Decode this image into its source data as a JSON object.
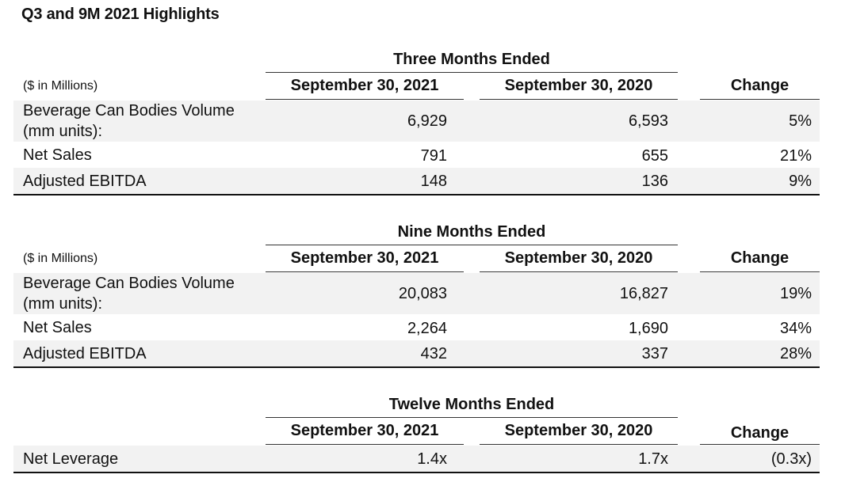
{
  "title": "Q3 and 9M 2021 Highlights",
  "sections": [
    {
      "period": "Three Months Ended",
      "units": "($ in Millions)",
      "columns": [
        "September 30, 2021",
        "September 30, 2020",
        "Change"
      ],
      "rows": [
        {
          "label_line1": "Beverage Can Bodies Volume",
          "label_line2": "(mm units):",
          "v2021": "6,929",
          "v2020": "6,593",
          "change": "5%"
        },
        {
          "label": "Net Sales",
          "v2021": "791",
          "v2020": "655",
          "change": "21%"
        },
        {
          "label": "Adjusted EBITDA",
          "v2021": "148",
          "v2020": "136",
          "change": "9%"
        }
      ]
    },
    {
      "period": "Nine Months Ended",
      "units": "($ in Millions)",
      "columns": [
        "September 30, 2021",
        "September 30, 2020",
        "Change"
      ],
      "rows": [
        {
          "label_line1": "Beverage Can Bodies Volume",
          "label_line2": "(mm units):",
          "v2021": "20,083",
          "v2020": "16,827",
          "change": "19%"
        },
        {
          "label": "Net Sales",
          "v2021": "2,264",
          "v2020": "1,690",
          "change": "34%"
        },
        {
          "label": "Adjusted EBITDA",
          "v2021": "432",
          "v2020": "337",
          "change": "28%"
        }
      ]
    },
    {
      "period": "Twelve Months Ended",
      "columns": [
        "September 30, 2021",
        "September 30, 2020",
        "Change"
      ],
      "rows": [
        {
          "label": "Net Leverage",
          "v2021": "1.4x",
          "v2020": "1.7x",
          "change": "(0.3x)"
        }
      ]
    }
  ]
}
